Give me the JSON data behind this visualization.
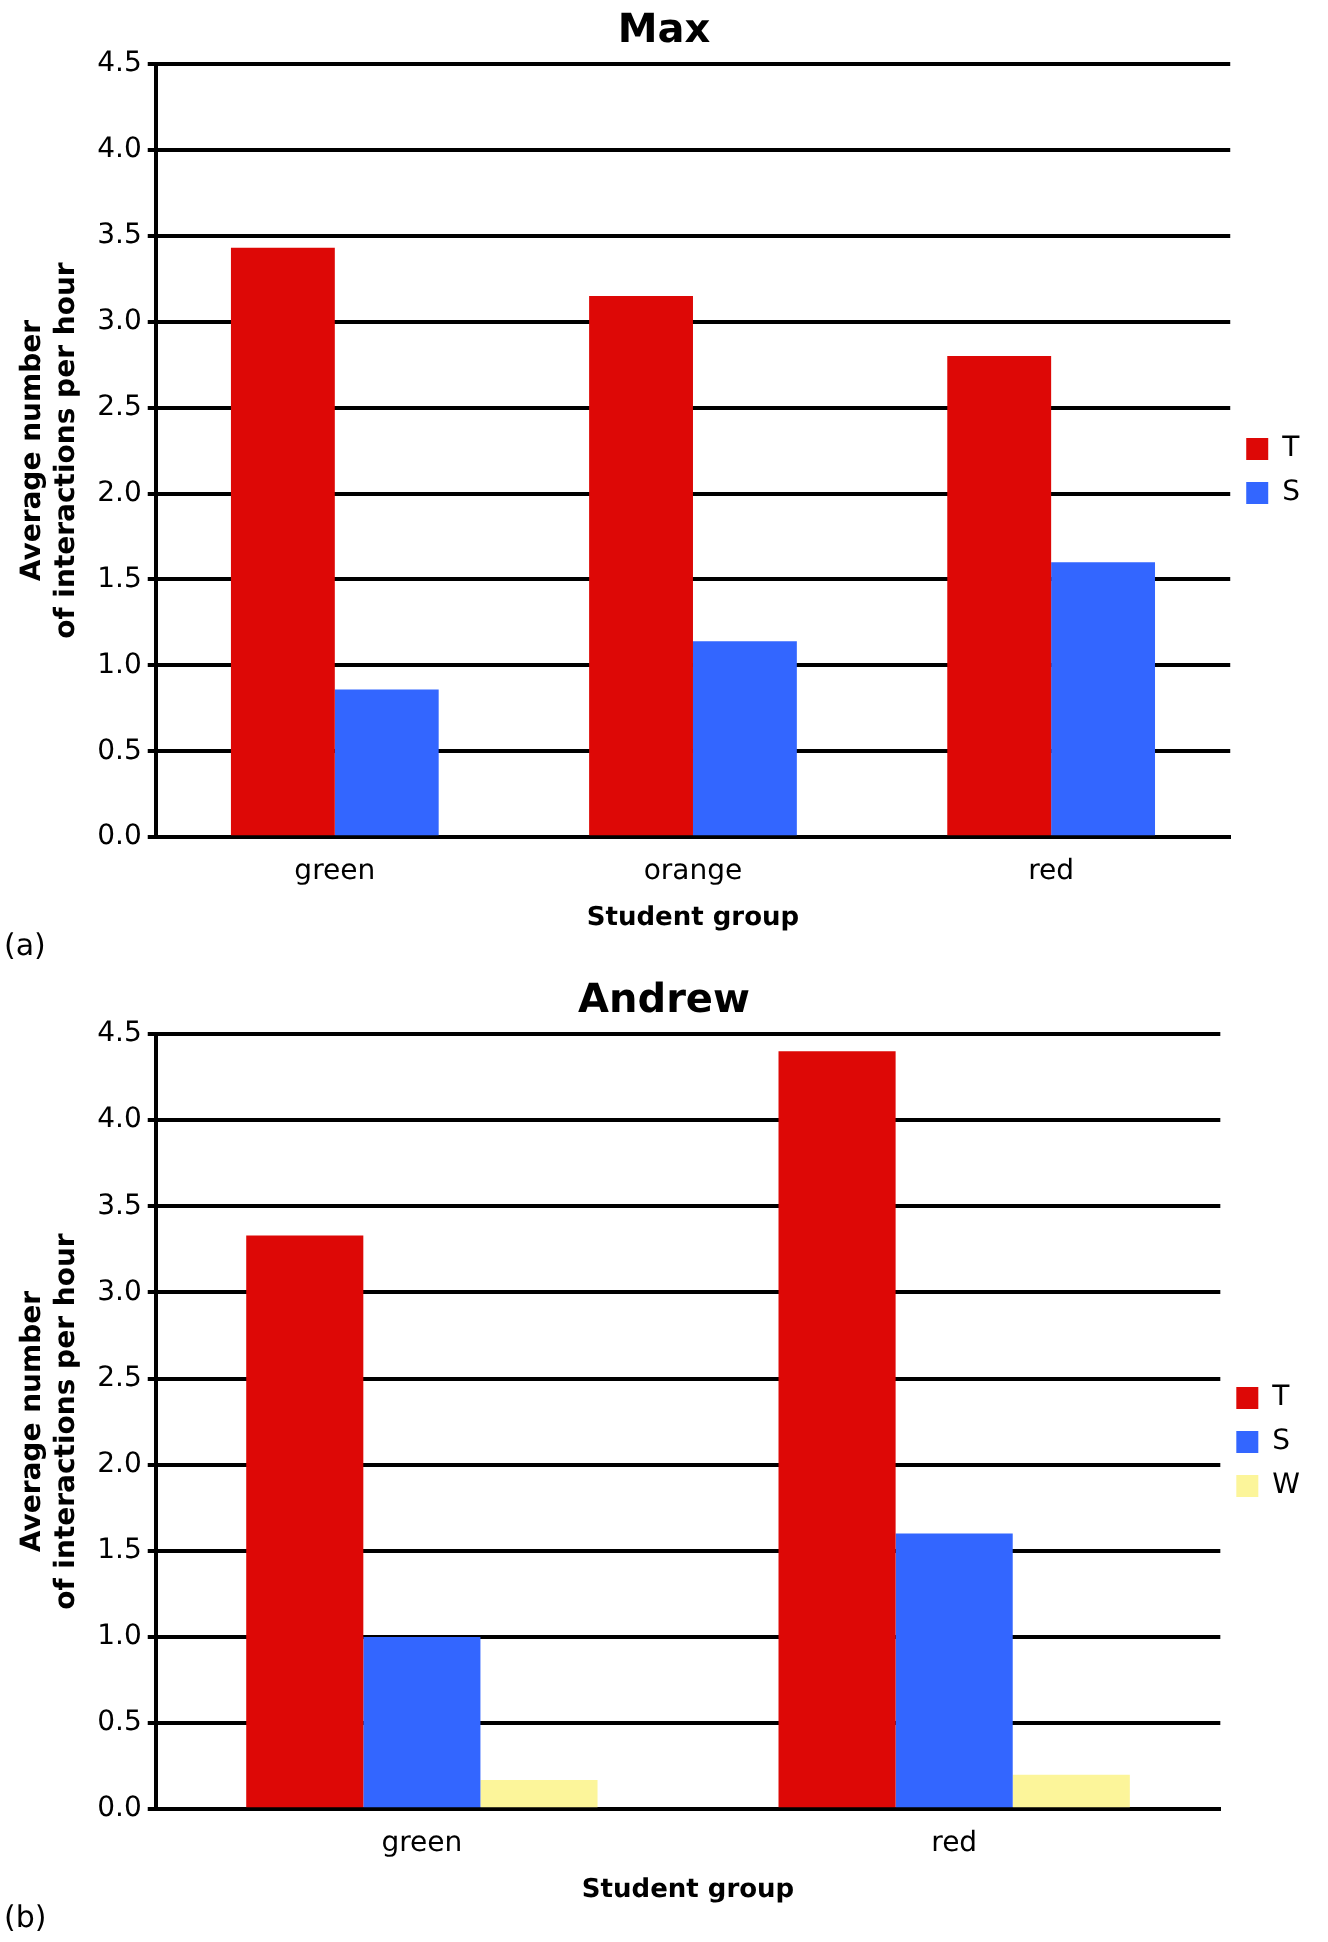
{
  "chart_data": [
    {
      "type": "bar",
      "title": "Max",
      "xlabel": "Student group",
      "ylabel": "Average number\nof interactions per hour",
      "categories": [
        "green",
        "orange",
        "red"
      ],
      "series": [
        {
          "name": "T",
          "color": "#dd0806",
          "values": [
            3.43,
            3.15,
            2.8
          ]
        },
        {
          "name": "S",
          "color": "#3366ff",
          "values": [
            0.86,
            1.14,
            1.6
          ]
        }
      ],
      "ylim": [
        0,
        4.5
      ],
      "yticks": [
        {
          "value": 0,
          "label": "0.0"
        },
        {
          "value": 0.5,
          "label": "0.5"
        },
        {
          "value": 1,
          "label": "1.0"
        },
        {
          "value": 1.5,
          "label": "1.5"
        },
        {
          "value": 2,
          "label": "2.0"
        },
        {
          "value": 2.5,
          "label": "2.5"
        },
        {
          "value": 3,
          "label": "3.0"
        },
        {
          "value": 3.5,
          "label": "3.5"
        },
        {
          "value": 4,
          "label": "4.0"
        },
        {
          "value": 4.5,
          "label": "4.5"
        }
      ],
      "grid": "y",
      "legend": "right",
      "annotations": [
        "(a)"
      ]
    },
    {
      "type": "bar",
      "title": "Andrew",
      "xlabel": "Student group",
      "ylabel": "Average number\nof interactions per hour",
      "categories": [
        "green",
        "red"
      ],
      "series": [
        {
          "name": "T",
          "color": "#dd0806",
          "values": [
            3.33,
            4.4
          ]
        },
        {
          "name": "S",
          "color": "#3366ff",
          "values": [
            1.0,
            1.6
          ]
        },
        {
          "name": "W",
          "color": "#fcf59a",
          "values": [
            0.17,
            0.2
          ]
        }
      ],
      "ylim": [
        0,
        4.5
      ],
      "yticks": [
        {
          "value": 0,
          "label": "0.0"
        },
        {
          "value": 0.5,
          "label": "0.5"
        },
        {
          "value": 1,
          "label": "1.0"
        },
        {
          "value": 1.5,
          "label": "1.5"
        },
        {
          "value": 2,
          "label": "2.0"
        },
        {
          "value": 2.5,
          "label": "2.5"
        },
        {
          "value": 3,
          "label": "3.0"
        },
        {
          "value": 3.5,
          "label": "3.5"
        },
        {
          "value": 4,
          "label": "4.0"
        },
        {
          "value": 4.5,
          "label": "4.5"
        }
      ],
      "grid": "y",
      "legend": "right",
      "annotations": [
        "(b)"
      ]
    }
  ]
}
